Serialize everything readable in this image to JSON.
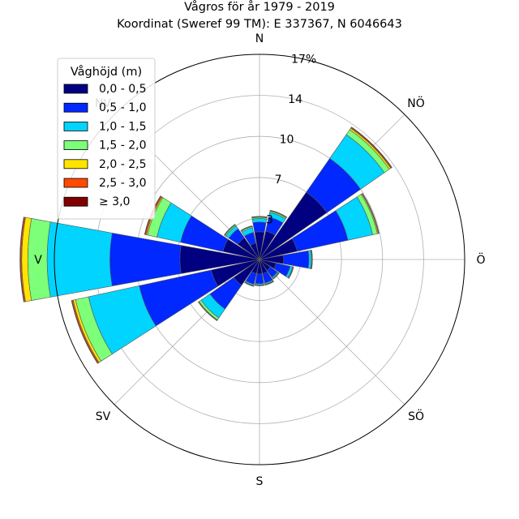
{
  "chart_data": {
    "type": "wind-rose",
    "title": "Vågros för år 1979 - 2019",
    "subtitle": "Koordinat (Sweref 99 TM): E 337367, N 6046643",
    "directions": [
      "N",
      "NÖ",
      "Ö",
      "SÖ",
      "S",
      "SV",
      "V",
      "NV"
    ],
    "radial_ticks": [
      "3",
      "7",
      "10",
      "14",
      "17%"
    ],
    "radial_tick_values": [
      3.4,
      6.8,
      10.2,
      13.6,
      17.0
    ],
    "rmax": 17.0,
    "grid": true,
    "legend": {
      "title": "Våghöjd (m)",
      "placement": "top-left",
      "entries": [
        "0,0 - 0,5",
        "0,5 - 1,0",
        "1,0 - 1,5",
        "1,5 - 2,0",
        "2,0 - 2,5",
        "2,5 - 3,0",
        "≥ 3,0"
      ],
      "colors": [
        "#000080",
        "#0028ff",
        "#00d4ff",
        "#7dff7a",
        "#ffe500",
        "#ff4a00",
        "#800000"
      ]
    },
    "sectors_deg": [
      0,
      22.5,
      45,
      67.5,
      90,
      112.5,
      135,
      157.5,
      180,
      202.5,
      225,
      247.5,
      270,
      292.5,
      315,
      337.5
    ],
    "stacks_cumulative": [
      [
        2.3,
        3.1,
        3.4,
        3.5,
        3.55,
        3.57,
        3.58
      ],
      [
        2.4,
        3.6,
        4.0,
        4.1,
        4.15,
        4.17,
        4.18
      ],
      [
        6.8,
        10.2,
        12.6,
        13.1,
        13.25,
        13.32,
        13.37
      ],
      [
        3.2,
        7.5,
        9.6,
        10.0,
        10.08,
        10.12,
        10.14
      ],
      [
        2.0,
        4.1,
        4.3,
        4.35,
        4.37,
        4.38,
        4.39
      ],
      [
        1.4,
        2.6,
        2.8,
        2.85,
        2.87,
        2.88,
        2.89
      ],
      [
        1.1,
        1.8,
        1.9,
        1.95,
        1.96,
        1.97,
        1.98
      ],
      [
        1.2,
        2.0,
        2.1,
        2.15,
        2.16,
        2.17,
        2.18
      ],
      [
        1.2,
        2.0,
        2.1,
        2.15,
        2.16,
        2.17,
        2.18
      ],
      [
        1.2,
        2.1,
        2.2,
        2.25,
        2.26,
        2.27,
        2.28
      ],
      [
        2.6,
        5.0,
        5.9,
        6.1,
        6.15,
        6.17,
        6.18
      ],
      [
        4.1,
        10.2,
        14.5,
        15.6,
        15.8,
        15.9,
        15.95
      ],
      [
        6.6,
        12.4,
        17.6,
        19.2,
        19.7,
        19.8,
        19.85
      ],
      [
        3.1,
        6.7,
        8.7,
        9.5,
        9.6,
        9.7,
        9.75
      ],
      [
        2.2,
        3.1,
        3.4,
        3.5,
        3.53,
        3.55,
        3.56
      ],
      [
        1.4,
        2.3,
        2.7,
        2.8,
        2.83,
        2.85,
        2.86
      ]
    ]
  }
}
